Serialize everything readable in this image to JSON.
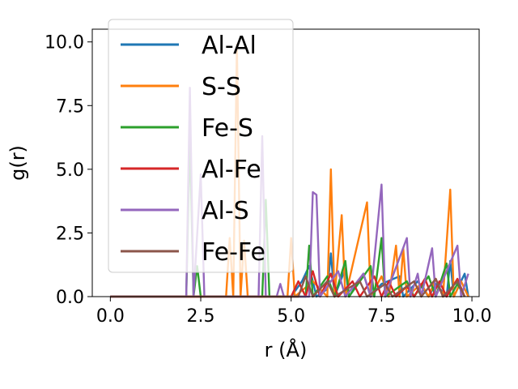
{
  "chart_data": {
    "type": "line",
    "title": "",
    "xlabel": "r (Å)",
    "ylabel": "g(r)",
    "xlim": [
      -0.5,
      10.2
    ],
    "ylim": [
      0,
      10.5
    ],
    "xticks": [
      "0.0",
      "2.5",
      "5.0",
      "7.5",
      "10.0"
    ],
    "xtick_values": [
      0,
      2.5,
      5,
      7.5,
      10
    ],
    "yticks": [
      "0.0",
      "2.5",
      "5.0",
      "7.5",
      "10.0"
    ],
    "ytick_values": [
      0,
      2.5,
      5,
      7.5,
      10
    ],
    "legend_position": "upper-left",
    "grid": false,
    "series": [
      {
        "name": "Al-Al",
        "color": "#1f77b4",
        "points": [
          [
            0,
            0
          ],
          [
            5.0,
            0
          ],
          [
            5.3,
            0.6
          ],
          [
            5.5,
            1.2
          ],
          [
            5.7,
            0
          ],
          [
            6.0,
            0.3
          ],
          [
            6.1,
            1.7
          ],
          [
            6.2,
            0
          ],
          [
            6.5,
            1.1
          ],
          [
            6.6,
            0
          ],
          [
            7.0,
            0.9
          ],
          [
            7.2,
            0
          ],
          [
            7.5,
            0.5
          ],
          [
            8.0,
            0.8
          ],
          [
            8.1,
            0
          ],
          [
            8.5,
            0.6
          ],
          [
            8.8,
            0
          ],
          [
            9.0,
            0.5
          ],
          [
            9.3,
            0
          ],
          [
            9.4,
            1.4
          ],
          [
            9.5,
            0
          ],
          [
            9.8,
            0.9
          ],
          [
            9.9,
            0
          ]
        ]
      },
      {
        "name": "S-S",
        "color": "#ff7f0e",
        "points": [
          [
            0,
            0
          ],
          [
            3.2,
            0
          ],
          [
            3.3,
            2.3
          ],
          [
            3.4,
            0
          ],
          [
            3.5,
            9.9
          ],
          [
            3.6,
            0
          ],
          [
            3.7,
            2.2
          ],
          [
            3.8,
            0
          ],
          [
            4.9,
            0
          ],
          [
            5.0,
            2.3
          ],
          [
            5.1,
            0
          ],
          [
            5.6,
            0.6
          ],
          [
            6.0,
            0
          ],
          [
            6.1,
            5.0
          ],
          [
            6.2,
            0
          ],
          [
            6.4,
            3.2
          ],
          [
            6.5,
            0
          ],
          [
            7.1,
            3.7
          ],
          [
            7.2,
            0
          ],
          [
            7.5,
            0.8
          ],
          [
            7.7,
            0
          ],
          [
            7.9,
            2.0
          ],
          [
            8.0,
            0
          ],
          [
            8.1,
            1.9
          ],
          [
            8.2,
            0
          ],
          [
            8.6,
            0.5
          ],
          [
            8.8,
            0
          ],
          [
            9.0,
            0.7
          ],
          [
            9.2,
            0
          ],
          [
            9.4,
            4.2
          ],
          [
            9.5,
            0
          ],
          [
            9.7,
            0.6
          ],
          [
            9.9,
            0
          ]
        ]
      },
      {
        "name": "Fe-S",
        "color": "#2ca02c",
        "points": [
          [
            0,
            0
          ],
          [
            2.1,
            0
          ],
          [
            2.2,
            6.2
          ],
          [
            2.3,
            0
          ],
          [
            2.4,
            1.2
          ],
          [
            2.5,
            0
          ],
          [
            4.2,
            0
          ],
          [
            4.3,
            3.8
          ],
          [
            4.4,
            0
          ],
          [
            5.4,
            0
          ],
          [
            5.5,
            2.0
          ],
          [
            5.6,
            0
          ],
          [
            6.0,
            0.8
          ],
          [
            6.2,
            0
          ],
          [
            6.5,
            1.4
          ],
          [
            6.6,
            0
          ],
          [
            7.2,
            1.2
          ],
          [
            7.3,
            0
          ],
          [
            7.5,
            2.3
          ],
          [
            7.6,
            0
          ],
          [
            8.2,
            0.6
          ],
          [
            8.4,
            0
          ],
          [
            8.8,
            0.8
          ],
          [
            9.0,
            0
          ],
          [
            9.3,
            1.3
          ],
          [
            9.4,
            0
          ],
          [
            9.6,
            0.5
          ],
          [
            9.8,
            0
          ]
        ]
      },
      {
        "name": "Al-Fe",
        "color": "#d62728",
        "points": [
          [
            0,
            0
          ],
          [
            5.0,
            0
          ],
          [
            5.2,
            0.6
          ],
          [
            5.4,
            0
          ],
          [
            5.6,
            1.0
          ],
          [
            5.8,
            0
          ],
          [
            6.1,
            0.9
          ],
          [
            6.3,
            0
          ],
          [
            6.7,
            0.6
          ],
          [
            6.9,
            0
          ],
          [
            7.3,
            0.8
          ],
          [
            7.5,
            0
          ],
          [
            7.7,
            0.6
          ],
          [
            7.9,
            0
          ],
          [
            8.2,
            0.4
          ],
          [
            8.4,
            0
          ],
          [
            8.7,
            0.7
          ],
          [
            8.9,
            0
          ],
          [
            9.1,
            0.6
          ],
          [
            9.3,
            0
          ],
          [
            9.6,
            0.7
          ],
          [
            9.8,
            0
          ]
        ]
      },
      {
        "name": "Al-S",
        "color": "#9467bd",
        "points": [
          [
            0,
            0
          ],
          [
            2.1,
            0
          ],
          [
            2.2,
            8.2
          ],
          [
            2.3,
            0
          ],
          [
            2.5,
            4.8
          ],
          [
            2.6,
            0
          ],
          [
            4.1,
            0
          ],
          [
            4.2,
            6.3
          ],
          [
            4.3,
            0
          ],
          [
            4.6,
            0
          ],
          [
            4.7,
            0.5
          ],
          [
            4.8,
            0
          ],
          [
            5.5,
            0
          ],
          [
            5.6,
            4.1
          ],
          [
            5.7,
            4.0
          ],
          [
            5.8,
            0
          ],
          [
            6.3,
            1.0
          ],
          [
            6.5,
            0
          ],
          [
            7.0,
            0.9
          ],
          [
            7.2,
            0
          ],
          [
            7.5,
            4.4
          ],
          [
            7.6,
            0
          ],
          [
            8.2,
            2.3
          ],
          [
            8.3,
            0
          ],
          [
            8.5,
            0.9
          ],
          [
            8.6,
            0
          ],
          [
            8.9,
            1.9
          ],
          [
            9.0,
            0
          ],
          [
            9.6,
            2.0
          ],
          [
            9.7,
            0
          ],
          [
            9.9,
            0.9
          ]
        ]
      },
      {
        "name": "Fe-Fe",
        "color": "#8c564b",
        "points": [
          [
            0,
            0
          ],
          [
            5.2,
            0
          ],
          [
            5.4,
            0.8
          ],
          [
            5.6,
            0
          ],
          [
            6.0,
            0.6
          ],
          [
            6.2,
            0
          ],
          [
            6.9,
            0.6
          ],
          [
            7.1,
            0
          ],
          [
            7.6,
            0.5
          ],
          [
            7.8,
            0
          ],
          [
            8.4,
            0.6
          ],
          [
            8.6,
            0
          ],
          [
            9.0,
            0.7
          ],
          [
            9.2,
            0
          ],
          [
            9.6,
            0.6
          ],
          [
            9.8,
            0
          ]
        ]
      }
    ]
  }
}
